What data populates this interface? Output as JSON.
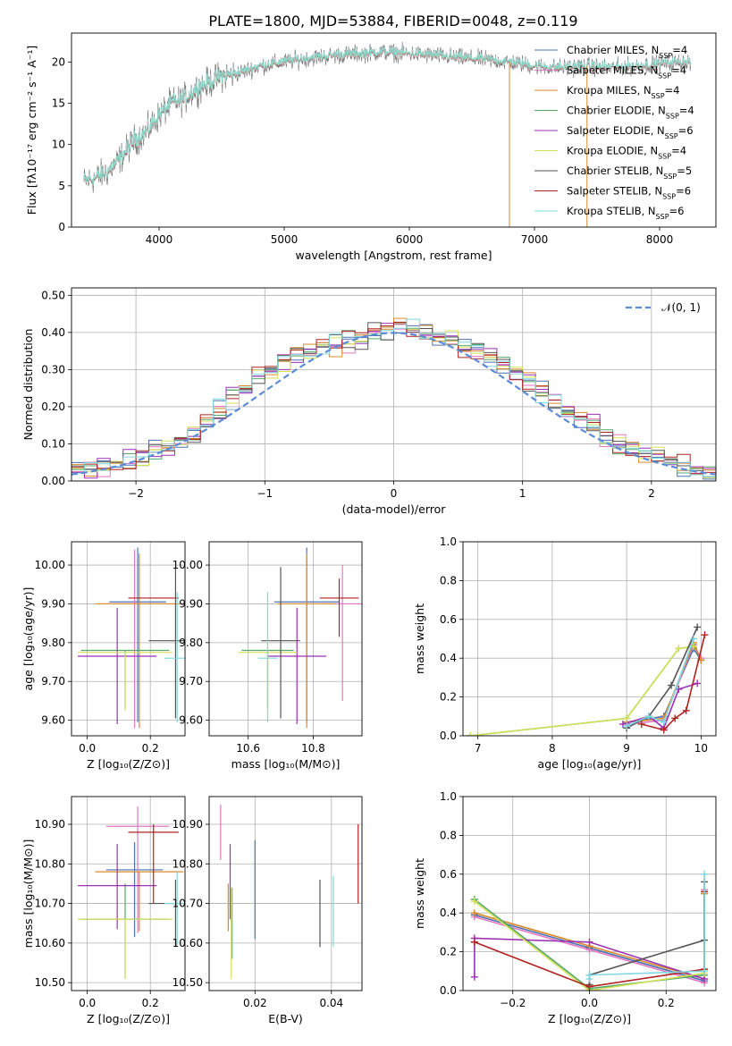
{
  "title": "PLATE=1800, MJD=53884, FIBERID=0048, z=0.119",
  "colors": {
    "Chabrier MILES": "#4c72b0",
    "Salpeter MILES": "#e377c2",
    "Kroupa MILES": "#d9892b",
    "Chabrier ELODIE": "#55a868",
    "Salpeter ELODIE": "#9b30b5",
    "Kroupa ELODIE": "#d4e157",
    "Chabrier STELIB": "#555555",
    "Salpeter STELIB": "#b22222",
    "Kroupa STELIB": "#7fd8e0"
  },
  "legend_labels": [
    {
      "name": "Chabrier MILES",
      "text": "Chabrier MILES, N",
      "sub": "SSP",
      "n": "=4"
    },
    {
      "name": "Salpeter MILES",
      "text": "Salpeter MILES, N",
      "sub": "SSP",
      "n": "=4"
    },
    {
      "name": "Kroupa MILES",
      "text": "Kroupa MILES, N",
      "sub": "SSP",
      "n": "=4"
    },
    {
      "name": "Chabrier ELODIE",
      "text": "Chabrier ELODIE, N",
      "sub": "SSP",
      "n": "=4"
    },
    {
      "name": "Salpeter ELODIE",
      "text": "Salpeter ELODIE, N",
      "sub": "SSP",
      "n": "=6"
    },
    {
      "name": "Kroupa ELODIE",
      "text": "Kroupa ELODIE, N",
      "sub": "SSP",
      "n": "=4"
    },
    {
      "name": "Chabrier STELIB",
      "text": "Chabrier STELIB, N",
      "sub": "SSP",
      "n": "=5"
    },
    {
      "name": "Salpeter STELIB",
      "text": "Salpeter STELIB, N",
      "sub": "SSP",
      "n": "=6"
    },
    {
      "name": "Kroupa STELIB",
      "text": "Kroupa STELIB, N",
      "sub": "SSP",
      "n": "=6"
    }
  ],
  "chart_data": [
    {
      "id": "spectrum",
      "type": "line",
      "xlabel": "wavelength [Angstrom, rest frame]",
      "ylabel": "Flux [fλ10⁻¹⁷ erg cm⁻² s⁻¹ A⁻¹]",
      "xlim": [
        3300,
        8450
      ],
      "ylim": [
        0,
        23.5
      ],
      "xticks": [
        4000,
        5000,
        6000,
        7000,
        8000
      ],
      "yticks": [
        0,
        5,
        10,
        15,
        20
      ],
      "grid": false,
      "legend": "top-right",
      "continuum": {
        "x": [
          3400,
          3500,
          3600,
          3700,
          3800,
          3900,
          4000,
          4100,
          4200,
          4300,
          4400,
          4500,
          4600,
          4800,
          5000,
          5200,
          5400,
          5600,
          5800,
          6000,
          6200,
          6400,
          6600,
          6800,
          7000,
          7200,
          7400,
          7600,
          7800,
          8000,
          8200
        ],
        "y": [
          5.5,
          6.0,
          6.8,
          8.5,
          10.5,
          11.5,
          13.5,
          15.0,
          15.5,
          16.8,
          17.5,
          18.3,
          18.5,
          19.5,
          20.0,
          20.5,
          20.8,
          21.0,
          21.2,
          21.0,
          20.8,
          20.5,
          20.3,
          20.0,
          19.5,
          19.3,
          19.5,
          19.3,
          19.5,
          19.8,
          20.0
        ]
      },
      "series": [
        "Chabrier MILES",
        "Kroupa MILES",
        "Salpeter ELODIE",
        "Kroupa ELODIE",
        "Kroupa STELIB"
      ]
    },
    {
      "id": "residuals",
      "type": "line",
      "xlabel": "(data-model)/error",
      "ylabel": "Normed distribution",
      "xlim": [
        -2.5,
        2.5
      ],
      "ylim": [
        0,
        0.52
      ],
      "xticks": [
        -2,
        -1,
        0,
        1,
        2
      ],
      "yticks": [
        0.0,
        0.1,
        0.2,
        0.3,
        0.4,
        0.5
      ],
      "grid": true,
      "legend": "top-right",
      "normal_label": "𝒩(0, 1)",
      "normal_color": "#5b8bd6",
      "bin_width": 0.1,
      "hist": {
        "bins_start": -2.5,
        "values": [
          0.03,
          0.035,
          0.04,
          0.045,
          0.05,
          0.06,
          0.075,
          0.09,
          0.11,
          0.13,
          0.16,
          0.19,
          0.22,
          0.25,
          0.28,
          0.3,
          0.32,
          0.34,
          0.35,
          0.36,
          0.37,
          0.38,
          0.39,
          0.4,
          0.41,
          0.42,
          0.41,
          0.4,
          0.39,
          0.38,
          0.36,
          0.35,
          0.33,
          0.31,
          0.29,
          0.27,
          0.24,
          0.21,
          0.19,
          0.17,
          0.15,
          0.12,
          0.1,
          0.09,
          0.08,
          0.06,
          0.05,
          0.04,
          0.03,
          0.02
        ]
      }
    },
    {
      "id": "age-vs-Z",
      "type": "scatter",
      "xlabel": "Z [log₁₀(Z/Z⊙)]",
      "ylabel": "age  [log₁₀(age/yr)]",
      "xlim": [
        -0.05,
        0.31
      ],
      "ylim": [
        9.56,
        10.06
      ],
      "xticks": [
        0.0,
        0.2
      ],
      "yticks": [
        9.6,
        9.7,
        9.8,
        9.9,
        10.0
      ],
      "grid": true,
      "points": [
        {
          "name": "Chabrier MILES",
          "x": 0.16,
          "y": 9.905,
          "xerr": 0.09,
          "yerr": [
            0.31,
            0.14
          ]
        },
        {
          "name": "Salpeter MILES",
          "x": 0.15,
          "y": 9.9,
          "xerr": 0.1,
          "yerr": [
            0.32,
            0.14
          ]
        },
        {
          "name": "Kroupa MILES",
          "x": 0.165,
          "y": 9.9,
          "xerr": 0.14,
          "yerr": [
            0.32,
            0.13
          ]
        },
        {
          "name": "Chabrier ELODIE",
          "x": 0.12,
          "y": 9.78,
          "xerr": 0.14,
          "yerr": [
            0.15,
            0.0
          ]
        },
        {
          "name": "Salpeter ELODIE",
          "x": 0.095,
          "y": 9.765,
          "xerr": 0.125,
          "yerr": [
            0.175,
            0.125
          ]
        },
        {
          "name": "Kroupa ELODIE",
          "x": 0.12,
          "y": 9.775,
          "xerr": 0.15,
          "yerr": [
            0.15,
            0.0
          ]
        },
        {
          "name": "Chabrier STELIB",
          "x": 0.28,
          "y": 9.805,
          "xerr": 0.085,
          "yerr": [
            0.2,
            0.19
          ]
        },
        {
          "name": "Salpeter STELIB",
          "x": 0.21,
          "y": 9.915,
          "xerr": 0.08,
          "yerr": [
            0.0,
            0.0
          ]
        },
        {
          "name": "Kroupa STELIB",
          "x": 0.285,
          "y": 9.76,
          "xerr": 0.04,
          "yerr": [
            0.165,
            0.17
          ]
        }
      ]
    },
    {
      "id": "age-vs-mass",
      "type": "scatter",
      "xlabel": "mass [log₁₀(M/M⊙)]",
      "ylabel": "",
      "xlim": [
        10.48,
        10.95
      ],
      "ylim": [
        9.56,
        10.06
      ],
      "xticks": [
        10.6,
        10.8
      ],
      "yticks": [
        9.6,
        9.7,
        9.8,
        9.9,
        10.0
      ],
      "grid": true,
      "points": [
        {
          "name": "Chabrier MILES",
          "x": 10.78,
          "y": 9.905,
          "xerr": 0.1,
          "yerr": [
            0.31,
            0.14
          ]
        },
        {
          "name": "Salpeter MILES",
          "x": 10.89,
          "y": 9.9,
          "xerr": 0.06,
          "yerr": [
            0.25,
            0.1
          ]
        },
        {
          "name": "Kroupa MILES",
          "x": 10.78,
          "y": 9.9,
          "xerr": 0.09,
          "yerr": [
            0.32,
            0.13
          ]
        },
        {
          "name": "Chabrier ELODIE",
          "x": 10.66,
          "y": 9.78,
          "xerr": 0.08,
          "yerr": [
            0.15,
            0.0
          ]
        },
        {
          "name": "Salpeter ELODIE",
          "x": 10.75,
          "y": 9.765,
          "xerr": 0.09,
          "yerr": [
            0.175,
            0.125
          ]
        },
        {
          "name": "Kroupa ELODIE",
          "x": 10.66,
          "y": 9.775,
          "xerr": 0.09,
          "yerr": [
            0.15,
            0.0
          ]
        },
        {
          "name": "Chabrier STELIB",
          "x": 10.7,
          "y": 9.805,
          "xerr": 0.06,
          "yerr": [
            0.2,
            0.19
          ]
        },
        {
          "name": "Salpeter STELIB",
          "x": 10.88,
          "y": 9.915,
          "xerr": 0.06,
          "yerr": [
            0.1,
            0.05
          ]
        },
        {
          "name": "Kroupa STELIB",
          "x": 10.66,
          "y": 9.76,
          "xerr": 0.03,
          "yerr": [
            0.165,
            0.17
          ]
        }
      ]
    },
    {
      "id": "massweight-vs-age",
      "type": "line",
      "xlabel": "age  [log₁₀(age/yr)]",
      "ylabel": "mass weight",
      "xlim": [
        6.8,
        10.2
      ],
      "ylim": [
        0,
        1
      ],
      "xticks": [
        7,
        8,
        9,
        10
      ],
      "yticks": [
        0.0,
        0.2,
        0.4,
        0.6,
        0.8,
        1.0
      ],
      "grid": true,
      "series": [
        {
          "name": "Chabrier MILES",
          "x": [
            9.0,
            9.5,
            9.9,
            10.0
          ],
          "y": [
            0.07,
            0.1,
            0.45,
            0.39
          ]
        },
        {
          "name": "Salpeter MILES",
          "x": [
            9.0,
            9.5,
            9.9,
            10.0
          ],
          "y": [
            0.06,
            0.08,
            0.47,
            0.4
          ]
        },
        {
          "name": "Kroupa MILES",
          "x": [
            9.0,
            9.5,
            9.9,
            10.0
          ],
          "y": [
            0.07,
            0.09,
            0.48,
            0.39
          ]
        },
        {
          "name": "Chabrier ELODIE",
          "x": [
            6.9,
            9.0,
            9.7,
            9.9
          ],
          "y": [
            0.0,
            0.09,
            0.45,
            0.46
          ]
        },
        {
          "name": "Salpeter ELODIE",
          "x": [
            8.95,
            9.3,
            9.5,
            9.7,
            9.95
          ],
          "y": [
            0.06,
            0.1,
            0.04,
            0.24,
            0.27
          ]
        },
        {
          "name": "Kroupa ELODIE",
          "x": [
            6.9,
            9.0,
            9.7,
            9.9
          ],
          "y": [
            0.0,
            0.09,
            0.45,
            0.46
          ]
        },
        {
          "name": "Chabrier STELIB",
          "x": [
            9.0,
            9.3,
            9.6,
            9.95
          ],
          "y": [
            0.04,
            0.1,
            0.26,
            0.56
          ]
        },
        {
          "name": "Salpeter STELIB",
          "x": [
            9.2,
            9.5,
            9.65,
            9.8,
            10.05
          ],
          "y": [
            0.06,
            0.03,
            0.09,
            0.13,
            0.52
          ]
        },
        {
          "name": "Kroupa STELIB",
          "x": [
            9.0,
            9.3,
            9.5,
            9.9
          ],
          "y": [
            0.05,
            0.1,
            0.07,
            0.5
          ]
        }
      ]
    },
    {
      "id": "mass-vs-Z",
      "type": "scatter",
      "xlabel": "Z [log₁₀(Z/Z⊙)]",
      "ylabel": "mass [log₁₀(M/M⊙)]",
      "xlim": [
        -0.05,
        0.31
      ],
      "ylim": [
        10.48,
        10.97
      ],
      "xticks": [
        0.0,
        0.2
      ],
      "yticks": [
        10.5,
        10.6,
        10.7,
        10.8,
        10.9
      ],
      "grid": true,
      "points": [
        {
          "name": "Chabrier MILES",
          "x": 0.15,
          "y": 10.785,
          "xerr": 0.09,
          "yerr": [
            0.17,
            0.07
          ]
        },
        {
          "name": "Salpeter MILES",
          "x": 0.16,
          "y": 10.895,
          "xerr": 0.1,
          "yerr": [
            0.27,
            0.05
          ]
        },
        {
          "name": "Kroupa MILES",
          "x": 0.165,
          "y": 10.78,
          "xerr": 0.14,
          "yerr": [
            0.15,
            0.0
          ]
        },
        {
          "name": "Chabrier ELODIE",
          "x": 0.12,
          "y": 10.66,
          "xerr": 0.14,
          "yerr": [
            0.15,
            0.09
          ]
        },
        {
          "name": "Salpeter ELODIE",
          "x": 0.095,
          "y": 10.745,
          "xerr": 0.125,
          "yerr": [
            0.11,
            0.105
          ]
        },
        {
          "name": "Kroupa ELODIE",
          "x": 0.12,
          "y": 10.66,
          "xerr": 0.15,
          "yerr": [
            0.15,
            0.0
          ]
        },
        {
          "name": "Chabrier STELIB",
          "x": 0.28,
          "y": 10.7,
          "xerr": 0.085,
          "yerr": [
            0.11,
            0.06
          ]
        },
        {
          "name": "Salpeter STELIB",
          "x": 0.21,
          "y": 10.88,
          "xerr": 0.08,
          "yerr": [
            0.18,
            0.02
          ]
        },
        {
          "name": "Kroupa STELIB",
          "x": 0.285,
          "y": 10.7,
          "xerr": 0.04,
          "yerr": [
            0.11,
            0.08
          ]
        }
      ]
    },
    {
      "id": "mass-vs-EBV",
      "type": "scatter",
      "xlabel": "E(B-V)",
      "ylabel": "",
      "xlim": [
        0.008,
        0.048
      ],
      "ylim": [
        10.48,
        10.97
      ],
      "xticks": [
        0.02,
        0.04
      ],
      "yticks": [
        10.5,
        10.6,
        10.7,
        10.8,
        10.9
      ],
      "grid": true,
      "points": [
        {
          "name": "Chabrier MILES",
          "x": 0.02,
          "y": 10.73,
          "xerr": 0.0,
          "yerr": [
            0.12,
            0.13
          ]
        },
        {
          "name": "Salpeter MILES",
          "x": 0.011,
          "y": 10.87,
          "xerr": 0.0,
          "yerr": [
            0.06,
            0.08
          ]
        },
        {
          "name": "Kroupa MILES",
          "x": 0.013,
          "y": 10.7,
          "xerr": 0.0,
          "yerr": [
            0.07,
            0.05
          ]
        },
        {
          "name": "Chabrier ELODIE",
          "x": 0.014,
          "y": 10.65,
          "xerr": 0.0,
          "yerr": [
            0.09,
            0.09
          ]
        },
        {
          "name": "Salpeter ELODIE",
          "x": 0.0135,
          "y": 10.76,
          "xerr": 0.0,
          "yerr": [
            0.1,
            0.09
          ]
        },
        {
          "name": "Kroupa ELODIE",
          "x": 0.0138,
          "y": 10.6,
          "xerr": 0.0,
          "yerr": [
            0.09,
            0.14
          ]
        },
        {
          "name": "Chabrier STELIB",
          "x": 0.037,
          "y": 10.67,
          "xerr": 0.0,
          "yerr": [
            0.08,
            0.09
          ]
        },
        {
          "name": "Salpeter STELIB",
          "x": 0.047,
          "y": 10.8,
          "xerr": 0.0,
          "yerr": [
            0.1,
            0.1
          ]
        },
        {
          "name": "Kroupa STELIB",
          "x": 0.0405,
          "y": 10.68,
          "xerr": 0.0,
          "yerr": [
            0.09,
            0.09
          ]
        }
      ]
    },
    {
      "id": "massweight-vs-Z",
      "type": "line",
      "xlabel": "Z [log₁₀(Z/Z⊙)]",
      "ylabel": "mass weight",
      "xlim": [
        -0.33,
        0.33
      ],
      "ylim": [
        0,
        1
      ],
      "xticks": [
        -0.2,
        0.0,
        0.2
      ],
      "yticks": [
        0.0,
        0.2,
        0.4,
        0.6,
        0.8,
        1.0
      ],
      "grid": true,
      "series": [
        {
          "name": "Chabrier MILES",
          "x": [
            -0.3,
            0.0,
            0.3,
            0.3
          ],
          "y": [
            0.39,
            0.22,
            0.05,
            0.5
          ]
        },
        {
          "name": "Salpeter MILES",
          "x": [
            -0.3,
            0.0,
            0.3,
            0.3
          ],
          "y": [
            0.38,
            0.21,
            0.04,
            0.52
          ]
        },
        {
          "name": "Kroupa MILES",
          "x": [
            -0.3,
            0.0,
            0.3,
            0.3
          ],
          "y": [
            0.4,
            0.23,
            0.06,
            0.5
          ]
        },
        {
          "name": "Chabrier ELODIE",
          "x": [
            -0.3,
            0.0,
            0.3
          ],
          "y": [
            0.47,
            0.01,
            0.08
          ]
        },
        {
          "name": "Salpeter ELODIE",
          "x": [
            -0.3,
            -0.3,
            0.0,
            0.3
          ],
          "y": [
            0.07,
            0.27,
            0.25,
            0.06
          ]
        },
        {
          "name": "Kroupa ELODIE",
          "x": [
            -0.3,
            0.0,
            0.3
          ],
          "y": [
            0.46,
            0.0,
            0.09
          ]
        },
        {
          "name": "Chabrier STELIB",
          "x": [
            0.0,
            0.0,
            0.3,
            0.3
          ],
          "y": [
            0.03,
            0.08,
            0.26,
            0.56
          ]
        },
        {
          "name": "Salpeter STELIB",
          "x": [
            -0.3,
            0.0,
            0.3,
            0.3
          ],
          "y": [
            0.25,
            0.02,
            0.11,
            0.51
          ]
        },
        {
          "name": "Kroupa STELIB",
          "x": [
            0.0,
            0.0,
            0.3,
            0.3
          ],
          "y": [
            0.06,
            0.08,
            0.1,
            0.6
          ]
        }
      ]
    }
  ]
}
